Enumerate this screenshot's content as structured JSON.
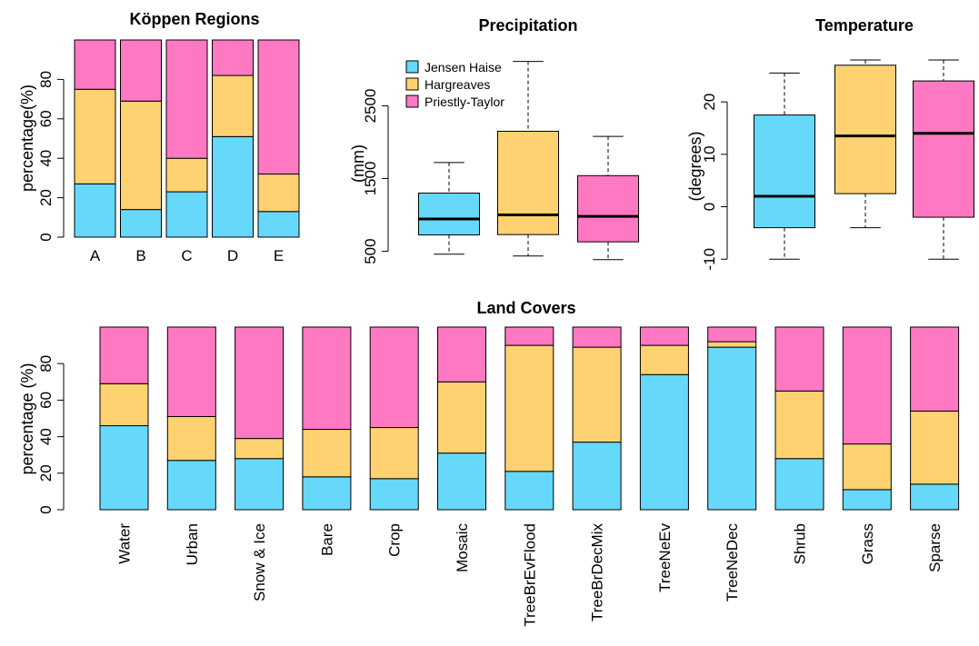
{
  "colors": {
    "jensen": "#66d9fb",
    "hargreaves": "#fed271",
    "priestly": "#ff78c2"
  },
  "legend": {
    "items": [
      "Jensen Haise",
      "Hargreaves",
      "Priestly-Taylor"
    ]
  },
  "chart_data": [
    {
      "id": "koppen",
      "type": "bar",
      "stacked": true,
      "title": "Köppen Regions",
      "ylabel": "percentage(%)",
      "ylim": [
        0,
        100
      ],
      "yticks": [
        0,
        20,
        40,
        60,
        80
      ],
      "categories": [
        "A",
        "B",
        "C",
        "D",
        "E"
      ],
      "series": [
        {
          "name": "Jensen Haise",
          "values": [
            27,
            14,
            23,
            51,
            13
          ]
        },
        {
          "name": "Hargreaves",
          "values": [
            48,
            55,
            17,
            31,
            19
          ]
        },
        {
          "name": "Priestly-Taylor",
          "values": [
            25,
            31,
            60,
            18,
            68
          ]
        }
      ]
    },
    {
      "id": "precip",
      "type": "box",
      "title": "Precipitation",
      "ylabel": "(mm)",
      "yticks": [
        500,
        1500,
        2500
      ],
      "ylim": [
        320,
        3130
      ],
      "boxes": [
        {
          "name": "Jensen Haise",
          "min": 460,
          "q1": 725,
          "median": 945,
          "q3": 1300,
          "max": 1720
        },
        {
          "name": "Hargreaves",
          "min": 435,
          "q1": 730,
          "median": 1000,
          "q3": 2150,
          "max": 3110
        },
        {
          "name": "Priestly-Taylor",
          "min": 385,
          "q1": 630,
          "median": 980,
          "q3": 1540,
          "max": 2080
        }
      ]
    },
    {
      "id": "temp",
      "type": "box",
      "title": "Temperature",
      "ylabel": "(degrees)",
      "yticks": [
        -10,
        0,
        10,
        20
      ],
      "ylim": [
        -11,
        28
      ],
      "boxes": [
        {
          "name": "Jensen Haise",
          "min": -10,
          "q1": -4,
          "median": 2,
          "q3": 17.5,
          "max": 25.5
        },
        {
          "name": "Hargreaves",
          "min": -4,
          "q1": 2.5,
          "median": 13.5,
          "q3": 27,
          "max": 28
        },
        {
          "name": "Priestly-Taylor",
          "min": -10,
          "q1": -2,
          "median": 14,
          "q3": 24,
          "max": 28
        }
      ]
    },
    {
      "id": "land",
      "type": "bar",
      "stacked": true,
      "title": "Land Covers",
      "ylabel": "percentage (%)",
      "ylim": [
        0,
        100
      ],
      "yticks": [
        0,
        20,
        40,
        60,
        80
      ],
      "categories": [
        "Water",
        "Urban",
        "Snow & Ice",
        "Bare",
        "Crop",
        "Mosaic",
        "TreeBrEvFlood",
        "TreeBrDecMix",
        "TreeNeEv",
        "TreeNeDec",
        "Shrub",
        "Grass",
        "Sparse"
      ],
      "series": [
        {
          "name": "Jensen Haise",
          "values": [
            46,
            27,
            28,
            18,
            17,
            31,
            21,
            37,
            74,
            89,
            28,
            11,
            14
          ]
        },
        {
          "name": "Hargreaves",
          "values": [
            23,
            24,
            11,
            26,
            28,
            39,
            69,
            52,
            16,
            3,
            37,
            25,
            40
          ]
        },
        {
          "name": "Priestly-Taylor",
          "values": [
            31,
            49,
            61,
            56,
            55,
            30,
            10,
            11,
            10,
            8,
            35,
            64,
            46
          ]
        }
      ]
    }
  ]
}
